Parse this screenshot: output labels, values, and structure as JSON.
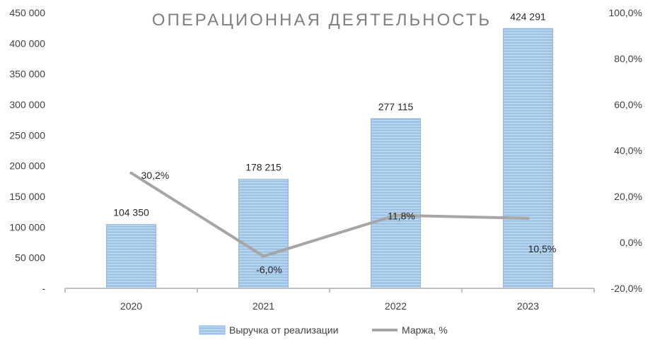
{
  "chart_data": {
    "type": "bar",
    "title": "ОПЕРАЦИОННАЯ ДЕЯТЕЛЬНОСТЬ",
    "categories": [
      "2020",
      "2021",
      "2022",
      "2023"
    ],
    "series": [
      {
        "name": "Выручка от реализации",
        "type": "bar",
        "axis": "left",
        "values": [
          104350,
          178215,
          277115,
          424291
        ],
        "labels": [
          "104 350",
          "178 215",
          "277 115",
          "424 291"
        ],
        "color": "#9dc3e6"
      },
      {
        "name": "Маржа, %",
        "type": "line",
        "axis": "right",
        "values": [
          30.2,
          -6.0,
          11.8,
          10.5
        ],
        "labels": [
          "30,2%",
          "-6,0%",
          "11,8%",
          "10,5%"
        ],
        "color": "#a6a6a6"
      }
    ],
    "y_left": {
      "ylim": [
        0,
        450000
      ],
      "ticks": [
        "-",
        "50 000",
        "100 000",
        "150 000",
        "200 000",
        "250 000",
        "300 000",
        "350 000",
        "400 000",
        "450 000"
      ]
    },
    "y_right": {
      "ylim": [
        -20,
        100
      ],
      "ticks": [
        "-20,0%",
        "0,0%",
        "20,0%",
        "40,0%",
        "60,0%",
        "80,0%",
        "100,0%"
      ]
    },
    "grid": false,
    "legend_position": "bottom"
  }
}
